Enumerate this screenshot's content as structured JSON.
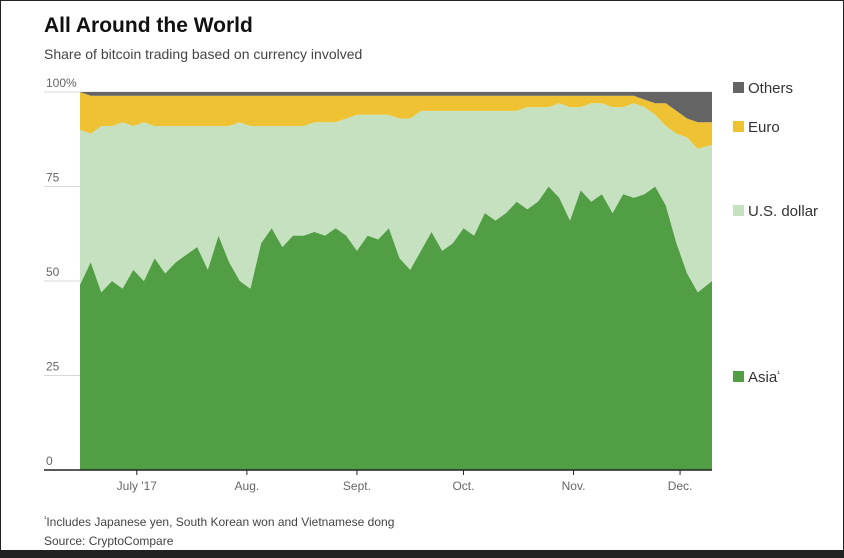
{
  "title": "All Around the World",
  "subtitle": "Share of bitcoin trading based on currency involved",
  "footnote": "Includes Japanese yen, South Korean won and Vietnamese dong",
  "footnote_mark": "¹",
  "source": "Source: CryptoCompare",
  "chart_data": {
    "type": "area",
    "stacked": true,
    "ylim": [
      0,
      100
    ],
    "y_ticks": [
      "0",
      "25",
      "50",
      "75",
      "100%"
    ],
    "y_tick_values": [
      0,
      25,
      50,
      75,
      100
    ],
    "x_ticks": [
      "July '17",
      "Aug.",
      "Sept.",
      "Oct.",
      "Nov.",
      "Dec."
    ],
    "x_tick_values": [
      16,
      47,
      78,
      108,
      139,
      169
    ],
    "x_range": [
      0,
      178
    ],
    "x_points": [
      0,
      3,
      6,
      9,
      12,
      15,
      18,
      21,
      24,
      27,
      30,
      33,
      36,
      39,
      42,
      45,
      48,
      51,
      54,
      57,
      60,
      63,
      66,
      69,
      72,
      75,
      78,
      81,
      84,
      87,
      90,
      93,
      96,
      99,
      102,
      105,
      108,
      111,
      114,
      117,
      120,
      123,
      126,
      129,
      132,
      135,
      138,
      141,
      144,
      147,
      150,
      153,
      156,
      159,
      162,
      165,
      168,
      171,
      174,
      178
    ],
    "series": [
      {
        "name": "Asia",
        "color": "#519e45",
        "values": [
          49,
          55,
          47,
          50,
          48,
          53,
          50,
          56,
          52,
          55,
          57,
          59,
          53,
          62,
          55,
          50,
          48,
          60,
          64,
          59,
          62,
          62,
          63,
          62,
          64,
          62,
          58,
          62,
          61,
          64,
          56,
          53,
          58,
          63,
          58,
          60,
          64,
          62,
          68,
          66,
          68,
          71,
          69,
          71,
          75,
          72,
          66,
          74,
          71,
          73,
          68,
          73,
          72,
          73,
          75,
          70,
          60,
          52,
          47,
          50
        ]
      },
      {
        "name": "U.S. dollar",
        "color": "#c6e1bf",
        "values": [
          41,
          34,
          44,
          41,
          44,
          38,
          42,
          35,
          39,
          36,
          34,
          32,
          38,
          29,
          36,
          42,
          43,
          31,
          27,
          32,
          29,
          29,
          29,
          30,
          28,
          31,
          36,
          32,
          33,
          30,
          37,
          40,
          37,
          32,
          37,
          35,
          31,
          33,
          27,
          29,
          27,
          24,
          27,
          25,
          21,
          25,
          30,
          22,
          26,
          24,
          28,
          23,
          25,
          23,
          19,
          21,
          29,
          36,
          38,
          36
        ]
      },
      {
        "name": "Euro",
        "color": "#eec232",
        "values": [
          10,
          10,
          8,
          8,
          7,
          8,
          7,
          8,
          8,
          8,
          8,
          8,
          8,
          8,
          8,
          7,
          8,
          8,
          8,
          8,
          8,
          8,
          7,
          7,
          7,
          6,
          5,
          5,
          5,
          5,
          6,
          6,
          4,
          4,
          4,
          4,
          4,
          4,
          4,
          4,
          4,
          4,
          3,
          3,
          3,
          2,
          3,
          3,
          2,
          2,
          3,
          3,
          2,
          2,
          3,
          6,
          6,
          5,
          7,
          6
        ]
      },
      {
        "name": "Others",
        "color": "#646464",
        "values": [
          0,
          1,
          1,
          1,
          1,
          1,
          1,
          1,
          1,
          1,
          1,
          1,
          1,
          1,
          1,
          1,
          1,
          1,
          1,
          1,
          1,
          1,
          1,
          1,
          1,
          1,
          1,
          1,
          1,
          1,
          1,
          1,
          1,
          1,
          1,
          1,
          1,
          1,
          1,
          1,
          1,
          1,
          1,
          1,
          1,
          1,
          1,
          1,
          1,
          1,
          1,
          1,
          1,
          2,
          3,
          3,
          5,
          7,
          8,
          8
        ]
      }
    ],
    "legend": [
      {
        "label": "Others",
        "superscript": "",
        "color": "#646464"
      },
      {
        "label": "Euro",
        "superscript": "",
        "color": "#eec232"
      },
      {
        "label": "U.S. dollar",
        "superscript": "",
        "color": "#c6e1bf"
      },
      {
        "label": "Asia",
        "superscript": "¹",
        "color": "#519e45"
      }
    ],
    "legend_placement": "right",
    "grid": true
  }
}
